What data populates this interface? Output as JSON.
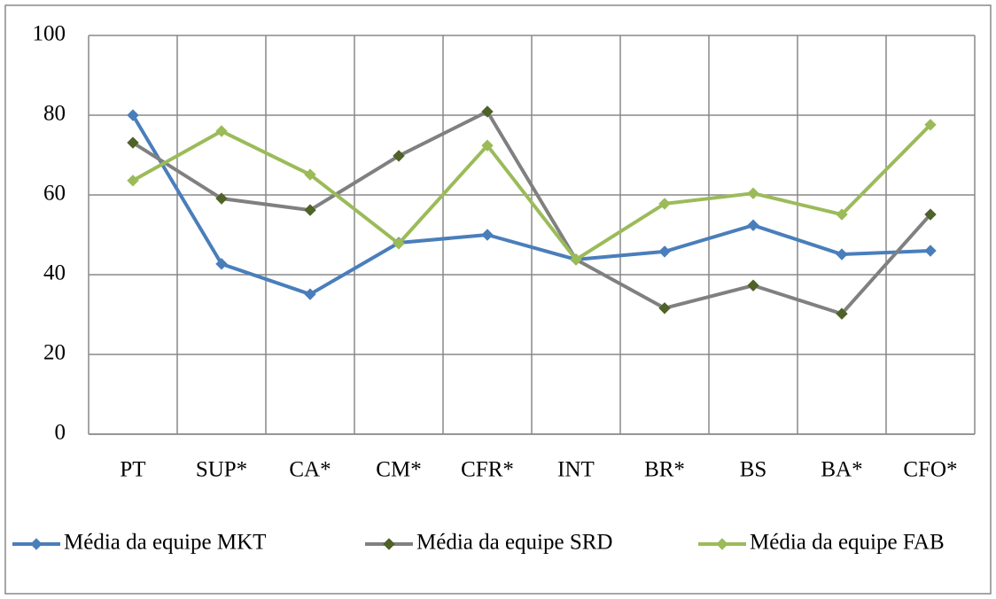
{
  "chart_data": {
    "type": "line",
    "categories": [
      "PT",
      "SUP*",
      "CA*",
      "CM*",
      "CFR*",
      "INT",
      "BR*",
      "BS",
      "BA*",
      "CFO*"
    ],
    "series": [
      {
        "name": "Média da equipe MKT",
        "color": "#4a7ebb",
        "marker_color": "#4a7ebb",
        "values": [
          80,
          42.7,
          35.1,
          48,
          50,
          43.8,
          45.8,
          52.4,
          45.1,
          46
        ]
      },
      {
        "name": "Média da equipe SRD",
        "color": "#808080",
        "marker_color": "#4f6228",
        "values": [
          73.1,
          59.1,
          56.2,
          69.8,
          80.9,
          43.8,
          31.6,
          37.3,
          30.2,
          55.1
        ]
      },
      {
        "name": "Média da equipe FAB",
        "color": "#9bbb59",
        "marker_color": "#9bbb59",
        "values": [
          63.6,
          76,
          65.1,
          47.8,
          72.4,
          43.8,
          57.8,
          60.4,
          55.1,
          77.6
        ]
      }
    ],
    "ylim": [
      0,
      100
    ],
    "yticks": [
      0,
      20,
      40,
      60,
      80,
      100
    ],
    "grid": true,
    "legend": "bottom"
  }
}
